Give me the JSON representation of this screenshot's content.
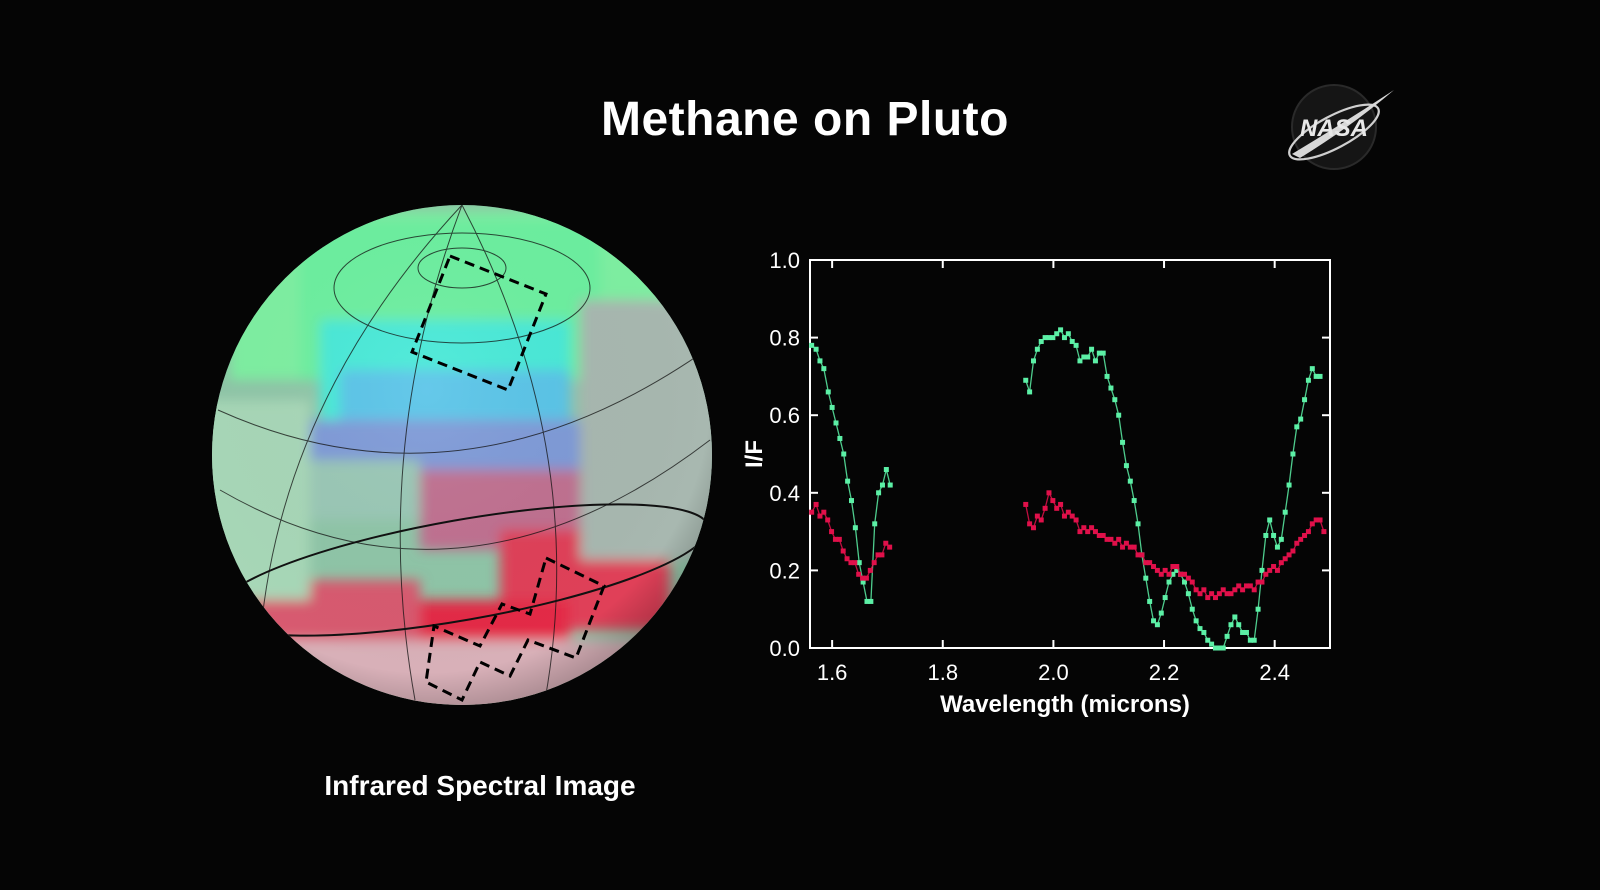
{
  "title": "Methane on Pluto",
  "logo_text": "NASA",
  "image_caption": "Infrared Spectral Image",
  "colors": {
    "green": "#5cf0a6",
    "red": "#e0104a",
    "background": "#050505"
  },
  "chart_data": {
    "type": "scatter",
    "xlabel": "Wavelength (microns)",
    "ylabel": "I/F",
    "xlim": [
      1.56,
      2.5
    ],
    "ylim": [
      0.0,
      1.0
    ],
    "xticks": [
      1.6,
      1.8,
      2.0,
      2.2,
      2.4
    ],
    "yticks": [
      0.0,
      0.2,
      0.4,
      0.6,
      0.8,
      1.0
    ],
    "xtick_labels": [
      "1.6",
      "1.8",
      "2.0",
      "2.2",
      "2.4"
    ],
    "ytick_labels": [
      "0.0",
      "0.2",
      "0.4",
      "0.6",
      "0.8",
      "1.0"
    ],
    "grid": false,
    "series": [
      {
        "color": "#5cf0a6",
        "segments": [
          [
            [
              1.563,
              0.78
            ],
            [
              1.571,
              0.77
            ],
            [
              1.578,
              0.74
            ],
            [
              1.585,
              0.72
            ],
            [
              1.593,
              0.66
            ],
            [
              1.6,
              0.62
            ],
            [
              1.607,
              0.58
            ],
            [
              1.614,
              0.54
            ],
            [
              1.621,
              0.5
            ],
            [
              1.628,
              0.43
            ],
            [
              1.635,
              0.38
            ],
            [
              1.642,
              0.31
            ],
            [
              1.649,
              0.22
            ],
            [
              1.656,
              0.17
            ],
            [
              1.663,
              0.12
            ],
            [
              1.67,
              0.12
            ],
            [
              1.677,
              0.32
            ],
            [
              1.684,
              0.4
            ],
            [
              1.691,
              0.42
            ],
            [
              1.698,
              0.46
            ],
            [
              1.705,
              0.42
            ]
          ],
          [
            [
              1.95,
              0.69
            ],
            [
              1.957,
              0.66
            ],
            [
              1.964,
              0.74
            ],
            [
              1.971,
              0.77
            ],
            [
              1.978,
              0.79
            ],
            [
              1.985,
              0.8
            ],
            [
              1.992,
              0.8
            ],
            [
              1.999,
              0.8
            ],
            [
              2.006,
              0.81
            ],
            [
              2.013,
              0.82
            ],
            [
              2.02,
              0.8
            ],
            [
              2.027,
              0.81
            ],
            [
              2.034,
              0.79
            ],
            [
              2.041,
              0.78
            ],
            [
              2.048,
              0.74
            ],
            [
              2.055,
              0.75
            ],
            [
              2.062,
              0.75
            ],
            [
              2.069,
              0.77
            ],
            [
              2.076,
              0.74
            ],
            [
              2.083,
              0.76
            ],
            [
              2.09,
              0.76
            ],
            [
              2.097,
              0.7
            ],
            [
              2.104,
              0.67
            ],
            [
              2.111,
              0.64
            ],
            [
              2.118,
              0.6
            ],
            [
              2.125,
              0.53
            ],
            [
              2.132,
              0.47
            ],
            [
              2.139,
              0.43
            ],
            [
              2.146,
              0.38
            ],
            [
              2.153,
              0.32
            ],
            [
              2.16,
              0.24
            ],
            [
              2.167,
              0.18
            ],
            [
              2.174,
              0.12
            ],
            [
              2.181,
              0.07
            ],
            [
              2.188,
              0.06
            ],
            [
              2.195,
              0.09
            ],
            [
              2.202,
              0.13
            ],
            [
              2.209,
              0.17
            ],
            [
              2.216,
              0.19
            ],
            [
              2.223,
              0.2
            ],
            [
              2.23,
              0.19
            ],
            [
              2.237,
              0.17
            ],
            [
              2.244,
              0.14
            ],
            [
              2.251,
              0.1
            ],
            [
              2.258,
              0.07
            ],
            [
              2.265,
              0.05
            ],
            [
              2.272,
              0.04
            ],
            [
              2.279,
              0.02
            ],
            [
              2.286,
              0.01
            ],
            [
              2.293,
              0.0
            ],
            [
              2.3,
              0.0
            ],
            [
              2.307,
              0.0
            ],
            [
              2.314,
              0.03
            ],
            [
              2.321,
              0.06
            ],
            [
              2.328,
              0.08
            ],
            [
              2.335,
              0.06
            ],
            [
              2.342,
              0.04
            ],
            [
              2.349,
              0.04
            ],
            [
              2.356,
              0.02
            ],
            [
              2.363,
              0.02
            ],
            [
              2.37,
              0.1
            ],
            [
              2.377,
              0.2
            ],
            [
              2.384,
              0.29
            ],
            [
              2.391,
              0.33
            ],
            [
              2.398,
              0.29
            ],
            [
              2.405,
              0.26
            ],
            [
              2.412,
              0.28
            ],
            [
              2.419,
              0.35
            ],
            [
              2.426,
              0.42
            ],
            [
              2.433,
              0.5
            ],
            [
              2.44,
              0.57
            ],
            [
              2.447,
              0.59
            ],
            [
              2.454,
              0.64
            ],
            [
              2.461,
              0.69
            ],
            [
              2.468,
              0.72
            ],
            [
              2.475,
              0.7
            ],
            [
              2.482,
              0.7
            ]
          ]
        ]
      },
      {
        "color": "#e0104a",
        "segments": [
          [
            [
              1.563,
              0.35
            ],
            [
              1.571,
              0.37
            ],
            [
              1.578,
              0.34
            ],
            [
              1.585,
              0.35
            ],
            [
              1.592,
              0.33
            ],
            [
              1.599,
              0.3
            ],
            [
              1.606,
              0.28
            ],
            [
              1.613,
              0.28
            ],
            [
              1.62,
              0.25
            ],
            [
              1.627,
              0.23
            ],
            [
              1.634,
              0.22
            ],
            [
              1.641,
              0.22
            ],
            [
              1.648,
              0.19
            ],
            [
              1.655,
              0.18
            ],
            [
              1.662,
              0.18
            ],
            [
              1.669,
              0.2
            ],
            [
              1.676,
              0.22
            ],
            [
              1.683,
              0.24
            ],
            [
              1.69,
              0.24
            ],
            [
              1.697,
              0.27
            ],
            [
              1.704,
              0.26
            ]
          ],
          [
            [
              1.95,
              0.37
            ],
            [
              1.957,
              0.32
            ],
            [
              1.964,
              0.31
            ],
            [
              1.971,
              0.34
            ],
            [
              1.978,
              0.33
            ],
            [
              1.985,
              0.36
            ],
            [
              1.992,
              0.4
            ],
            [
              1.999,
              0.38
            ],
            [
              2.006,
              0.36
            ],
            [
              2.013,
              0.37
            ],
            [
              2.02,
              0.34
            ],
            [
              2.027,
              0.35
            ],
            [
              2.034,
              0.34
            ],
            [
              2.041,
              0.33
            ],
            [
              2.048,
              0.3
            ],
            [
              2.055,
              0.31
            ],
            [
              2.062,
              0.3
            ],
            [
              2.069,
              0.31
            ],
            [
              2.076,
              0.3
            ],
            [
              2.083,
              0.29
            ],
            [
              2.09,
              0.29
            ],
            [
              2.097,
              0.28
            ],
            [
              2.104,
              0.28
            ],
            [
              2.111,
              0.27
            ],
            [
              2.118,
              0.28
            ],
            [
              2.125,
              0.26
            ],
            [
              2.132,
              0.27
            ],
            [
              2.139,
              0.26
            ],
            [
              2.146,
              0.26
            ],
            [
              2.153,
              0.24
            ],
            [
              2.16,
              0.24
            ],
            [
              2.167,
              0.22
            ],
            [
              2.174,
              0.22
            ],
            [
              2.181,
              0.21
            ],
            [
              2.188,
              0.2
            ],
            [
              2.195,
              0.19
            ],
            [
              2.202,
              0.2
            ],
            [
              2.209,
              0.19
            ],
            [
              2.216,
              0.21
            ],
            [
              2.223,
              0.21
            ],
            [
              2.23,
              0.19
            ],
            [
              2.237,
              0.19
            ],
            [
              2.244,
              0.18
            ],
            [
              2.251,
              0.17
            ],
            [
              2.258,
              0.15
            ],
            [
              2.265,
              0.14
            ],
            [
              2.272,
              0.15
            ],
            [
              2.279,
              0.13
            ],
            [
              2.286,
              0.14
            ],
            [
              2.293,
              0.13
            ],
            [
              2.3,
              0.14
            ],
            [
              2.307,
              0.15
            ],
            [
              2.314,
              0.14
            ],
            [
              2.321,
              0.14
            ],
            [
              2.328,
              0.15
            ],
            [
              2.335,
              0.16
            ],
            [
              2.342,
              0.15
            ],
            [
              2.349,
              0.16
            ],
            [
              2.356,
              0.16
            ],
            [
              2.363,
              0.15
            ],
            [
              2.37,
              0.17
            ],
            [
              2.377,
              0.17
            ],
            [
              2.384,
              0.19
            ],
            [
              2.391,
              0.2
            ],
            [
              2.398,
              0.21
            ],
            [
              2.405,
              0.2
            ],
            [
              2.412,
              0.22
            ],
            [
              2.419,
              0.23
            ],
            [
              2.426,
              0.24
            ],
            [
              2.433,
              0.25
            ],
            [
              2.44,
              0.27
            ],
            [
              2.447,
              0.28
            ],
            [
              2.454,
              0.29
            ],
            [
              2.461,
              0.3
            ],
            [
              2.468,
              0.32
            ],
            [
              2.475,
              0.33
            ],
            [
              2.482,
              0.33
            ],
            [
              2.489,
              0.3
            ]
          ]
        ]
      }
    ]
  }
}
